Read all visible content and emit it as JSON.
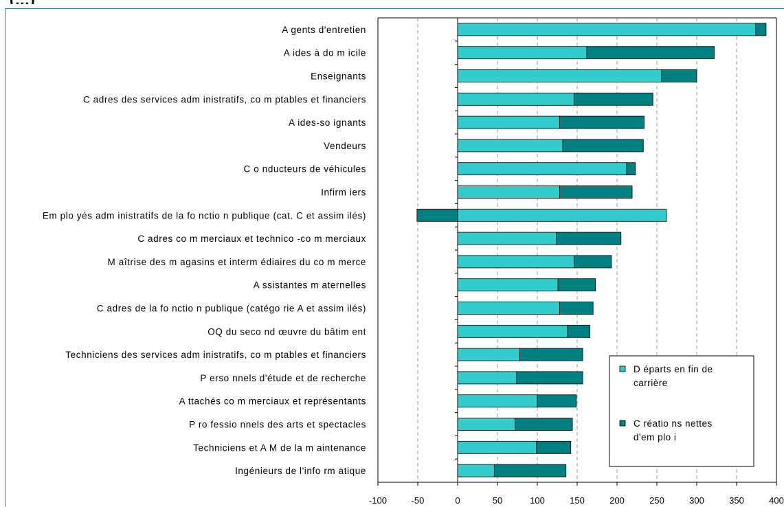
{
  "header_fragment": "(…)",
  "colors": {
    "departs": "#33cccc",
    "creations": "#008080",
    "axis": "#000000",
    "grid": "#808080"
  },
  "chart_data": {
    "type": "bar",
    "orientation": "horizontal",
    "stacked": true,
    "title": "",
    "xlabel": "",
    "ylabel": "",
    "xlim": [
      -100,
      400
    ],
    "xticks": [
      -100,
      -50,
      0,
      50,
      100,
      150,
      200,
      250,
      300,
      350,
      400
    ],
    "grid": "vertical dashed",
    "legend_position": "bottom-right",
    "categories": [
      "A gents d'entretien",
      "A ides à do m icile",
      "Enseignants",
      "C adres des services adm inistratifs, co m ptables et financiers",
      "A ides-so ignants",
      "Vendeurs",
      "C o nducteurs de véhicules",
      "Infirm iers",
      "Em plo yés adm inistratifs de la fo nctio n publique (cat. C et assim ilés)",
      "C adres co m merciaux et technico -co m merciaux",
      "M aîtrise des m agasins et interm édiaires du co m merce",
      "A ssistantes m aternelles",
      "C adres de la fo nctio n publique (catégo rie A et assim ilés)",
      "OQ du seco nd œuvre du bâtim ent",
      "Techniciens des services adm inistratifs, co m ptables et financiers",
      "P erso nnels d'étude et de recherche",
      "A ttachés co m merciaux et représentants",
      "P ro fessio nnels des arts et spectacles",
      "Techniciens et A M de la m aintenance",
      "Ingénieurs de l'info rm atique"
    ],
    "series": [
      {
        "name": "D éparts en fin de carrière",
        "values": [
          374,
          162,
          256,
          146,
          128,
          132,
          212,
          128,
          262,
          124,
          146,
          126,
          128,
          138,
          78,
          74,
          100,
          72,
          99,
          46
        ]
      },
      {
        "name": "C réatio ns nettes d'em plo i",
        "values": [
          13,
          160,
          44,
          99,
          106,
          101,
          11,
          91,
          -51,
          81,
          47,
          47,
          42,
          28,
          79,
          83,
          49,
          72,
          43,
          90
        ]
      }
    ]
  },
  "legend": {
    "items": [
      {
        "line1": "D éparts en fin de",
        "line2": "carrière"
      },
      {
        "line1": "C réatio ns nettes",
        "line2": "d'em plo i"
      }
    ]
  }
}
